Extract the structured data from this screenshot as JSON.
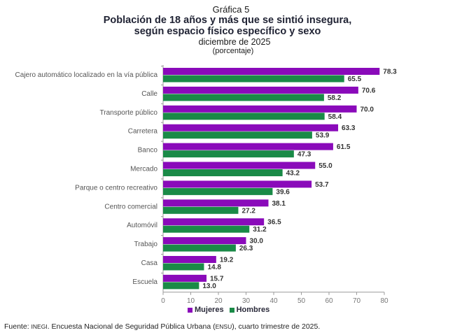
{
  "chart_data": {
    "type": "bar",
    "orientation": "horizontal",
    "kicker": "Gráfica 5",
    "title": "Población de 18 años y más que se sintió insegura, según espacio físico específico y sexo",
    "title_line1": "Población de 18 años y más que se sintió insegura,",
    "title_line2": "según espacio físico específico y sexo",
    "subtitle": "diciembre de 2025",
    "unit_label": "(porcentaje)",
    "xlabel": "",
    "ylabel": "",
    "xlim": [
      0,
      80
    ],
    "x_ticks": [
      0,
      10,
      20,
      30,
      40,
      50,
      60,
      70,
      80
    ],
    "grid": false,
    "legend_position": "bottom",
    "categories": [
      "Cajero automático localizado en la vía pública",
      "Calle",
      "Transporte público",
      "Carretera",
      "Banco",
      "Mercado",
      "Parque o centro recreativo",
      "Centro comercial",
      "Automóvil",
      "Trabajo",
      "Casa",
      "Escuela"
    ],
    "series": [
      {
        "name": "Mujeres",
        "color": "#8a0aba",
        "values": [
          78.3,
          70.6,
          70.0,
          63.3,
          61.5,
          55.0,
          53.7,
          38.1,
          36.5,
          30.0,
          19.2,
          15.7
        ],
        "labels": [
          "78.3",
          "70.6",
          "70.0",
          "63.3",
          "61.5",
          "55.0",
          "53.7",
          "38.1",
          "36.5",
          "30.0",
          "19.2",
          "15.7"
        ]
      },
      {
        "name": "Hombres",
        "color": "#1a8a47",
        "values": [
          65.5,
          58.2,
          58.4,
          53.9,
          47.3,
          43.2,
          39.6,
          27.2,
          31.2,
          26.3,
          14.8,
          13.0
        ],
        "labels": [
          "65.5",
          "58.2",
          "58.4",
          "53.9",
          "47.3",
          "43.2",
          "39.6",
          "27.2",
          "31.2",
          "26.3",
          "14.8",
          "13.0"
        ]
      }
    ]
  },
  "source": {
    "prefix": "Fuente: ",
    "org": "INEGI",
    "mid": ". Encuesta Nacional de Seguridad Pública Urbana (",
    "abbr": "ENSU",
    "suffix": "), cuarto trimestre de 2025."
  }
}
